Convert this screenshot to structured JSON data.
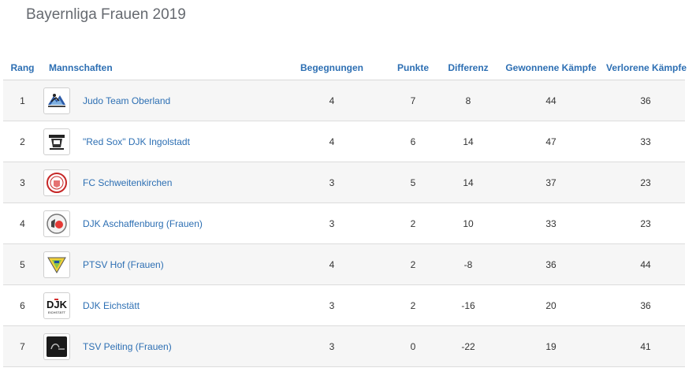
{
  "page_title": "Bayernliga Frauen 2019",
  "headers": {
    "rank": "Rang",
    "team": "Mannschaften",
    "matches": "Begegnungen",
    "points": "Punkte",
    "difference": "Differenz",
    "won": "Gewonnene Kämpfe",
    "lost": "Verlorene Kämpfe"
  },
  "accent_color": "#2d6fb3",
  "rows": [
    {
      "rank": "1",
      "team": "Judo Team Oberland",
      "logo_icon": "judo-team-oberland-logo-icon",
      "matches": "4",
      "points": "7",
      "difference": "8",
      "won": "44",
      "lost": "36"
    },
    {
      "rank": "2",
      "team": "\"Red Sox\" DJK Ingolstadt",
      "logo_icon": "red-sox-ingolstadt-logo-icon",
      "matches": "4",
      "points": "6",
      "difference": "14",
      "won": "47",
      "lost": "33"
    },
    {
      "rank": "3",
      "team": "FC Schweitenkirchen",
      "logo_icon": "fc-schweitenkirchen-logo-icon",
      "matches": "3",
      "points": "5",
      "difference": "14",
      "won": "37",
      "lost": "23"
    },
    {
      "rank": "4",
      "team": "DJK Aschaffenburg (Frauen)",
      "logo_icon": "djk-aschaffenburg-logo-icon",
      "matches": "3",
      "points": "2",
      "difference": "10",
      "won": "33",
      "lost": "23"
    },
    {
      "rank": "5",
      "team": "PTSV Hof (Frauen)",
      "logo_icon": "ptsv-hof-logo-icon",
      "matches": "4",
      "points": "2",
      "difference": "-8",
      "won": "36",
      "lost": "44"
    },
    {
      "rank": "6",
      "team": "DJK Eichstätt",
      "logo_icon": "djk-eichstaett-logo-icon",
      "logo_text": "DJK",
      "logo_subtext": "EICHSTÄTT",
      "matches": "3",
      "points": "2",
      "difference": "-16",
      "won": "20",
      "lost": "36"
    },
    {
      "rank": "7",
      "team": "TSV Peiting (Frauen)",
      "logo_icon": "tsv-peiting-logo-icon",
      "matches": "3",
      "points": "0",
      "difference": "-22",
      "won": "19",
      "lost": "41"
    }
  ]
}
